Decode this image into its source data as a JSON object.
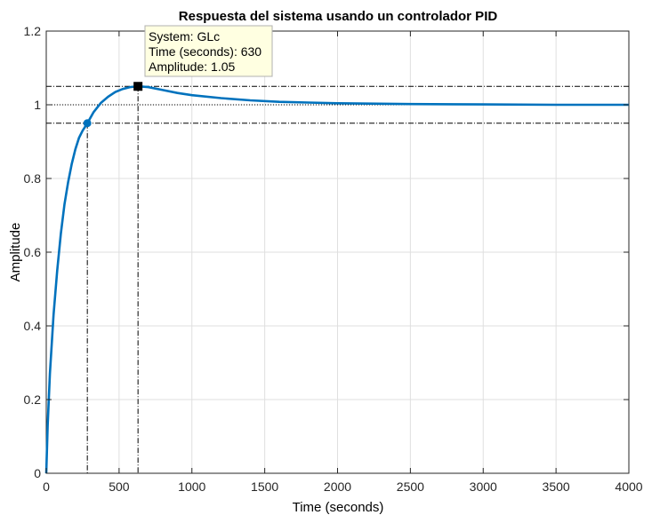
{
  "chart_data": {
    "type": "line",
    "title": "Respuesta del sistema usando un controlador PID",
    "xlabel": "Time (seconds)",
    "ylabel": "Amplitude",
    "xlim": [
      0,
      4000
    ],
    "ylim": [
      0,
      1.2
    ],
    "x_ticks": [
      0,
      500,
      1000,
      1500,
      2000,
      2500,
      3000,
      3500,
      4000
    ],
    "y_ticks": [
      0,
      0.2,
      0.4,
      0.6,
      0.8,
      1,
      1.2
    ],
    "grid": true,
    "series": [
      {
        "color": "#0072bd",
        "x": [
          0,
          10,
          25,
          50,
          75,
          100,
          125,
          150,
          175,
          200,
          225,
          250,
          282,
          325,
          375,
          425,
          475,
          525,
          575,
          630,
          700,
          800,
          900,
          1000,
          1200,
          1400,
          1600,
          1800,
          2000,
          2500,
          3000,
          3500,
          4000
        ],
        "y": [
          0,
          0.13,
          0.27,
          0.43,
          0.55,
          0.65,
          0.73,
          0.79,
          0.84,
          0.88,
          0.91,
          0.93,
          0.95,
          0.98,
          1.005,
          1.022,
          1.035,
          1.043,
          1.048,
          1.05,
          1.048,
          1.04,
          1.032,
          1.026,
          1.018,
          1.012,
          1.008,
          1.006,
          1.004,
          1.002,
          1.001,
          1.0,
          1.0
        ]
      }
    ],
    "reference_lines": {
      "steady_state": 1.0,
      "upper_band": 1.05,
      "lower_band": 0.95
    },
    "markers": [
      {
        "label": "rise-time-marker",
        "x": 282,
        "y": 0.95,
        "shape": "circle"
      },
      {
        "label": "peak-marker",
        "x": 630,
        "y": 1.05,
        "shape": "square"
      }
    ],
    "datatip": {
      "line1": "System: GLc",
      "line2": "Time (seconds): 630",
      "line3": "Amplitude: 1.05"
    }
  }
}
